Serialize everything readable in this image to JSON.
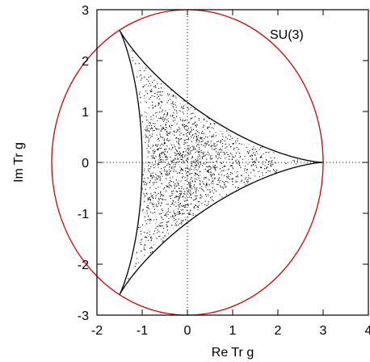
{
  "chart_data": {
    "type": "scatter",
    "title": "SU(3)",
    "xlabel": "Re Tr g",
    "ylabel": "Im Tr g",
    "xlim": [
      -2,
      4
    ],
    "ylim": [
      -3,
      3
    ],
    "x_ticks": [
      -2,
      -1,
      0,
      1,
      2,
      3,
      4
    ],
    "y_ticks": [
      -3,
      -2,
      -1,
      0,
      1,
      2,
      3
    ],
    "x_tick_labels": [
      "-2",
      "-1",
      "0",
      "1",
      "2",
      "3",
      "4"
    ],
    "y_tick_labels": [
      "-3",
      "-2",
      "-1",
      "0",
      "1",
      "2",
      "3"
    ],
    "grid": false,
    "reference_lines": {
      "x": 0,
      "y": 0,
      "style": "dotted"
    },
    "circle": {
      "center": [
        0,
        0
      ],
      "radius": 3,
      "color": "#d40000"
    },
    "deltoid": {
      "vertices": [
        [
          3,
          0
        ],
        [
          -1.5,
          2.598
        ],
        [
          -1.5,
          -2.598
        ]
      ],
      "color": "#000000"
    },
    "points": {
      "count": 9000,
      "color": "#000000",
      "density": "concentrated toward origin"
    },
    "legend_position": "top-right"
  }
}
